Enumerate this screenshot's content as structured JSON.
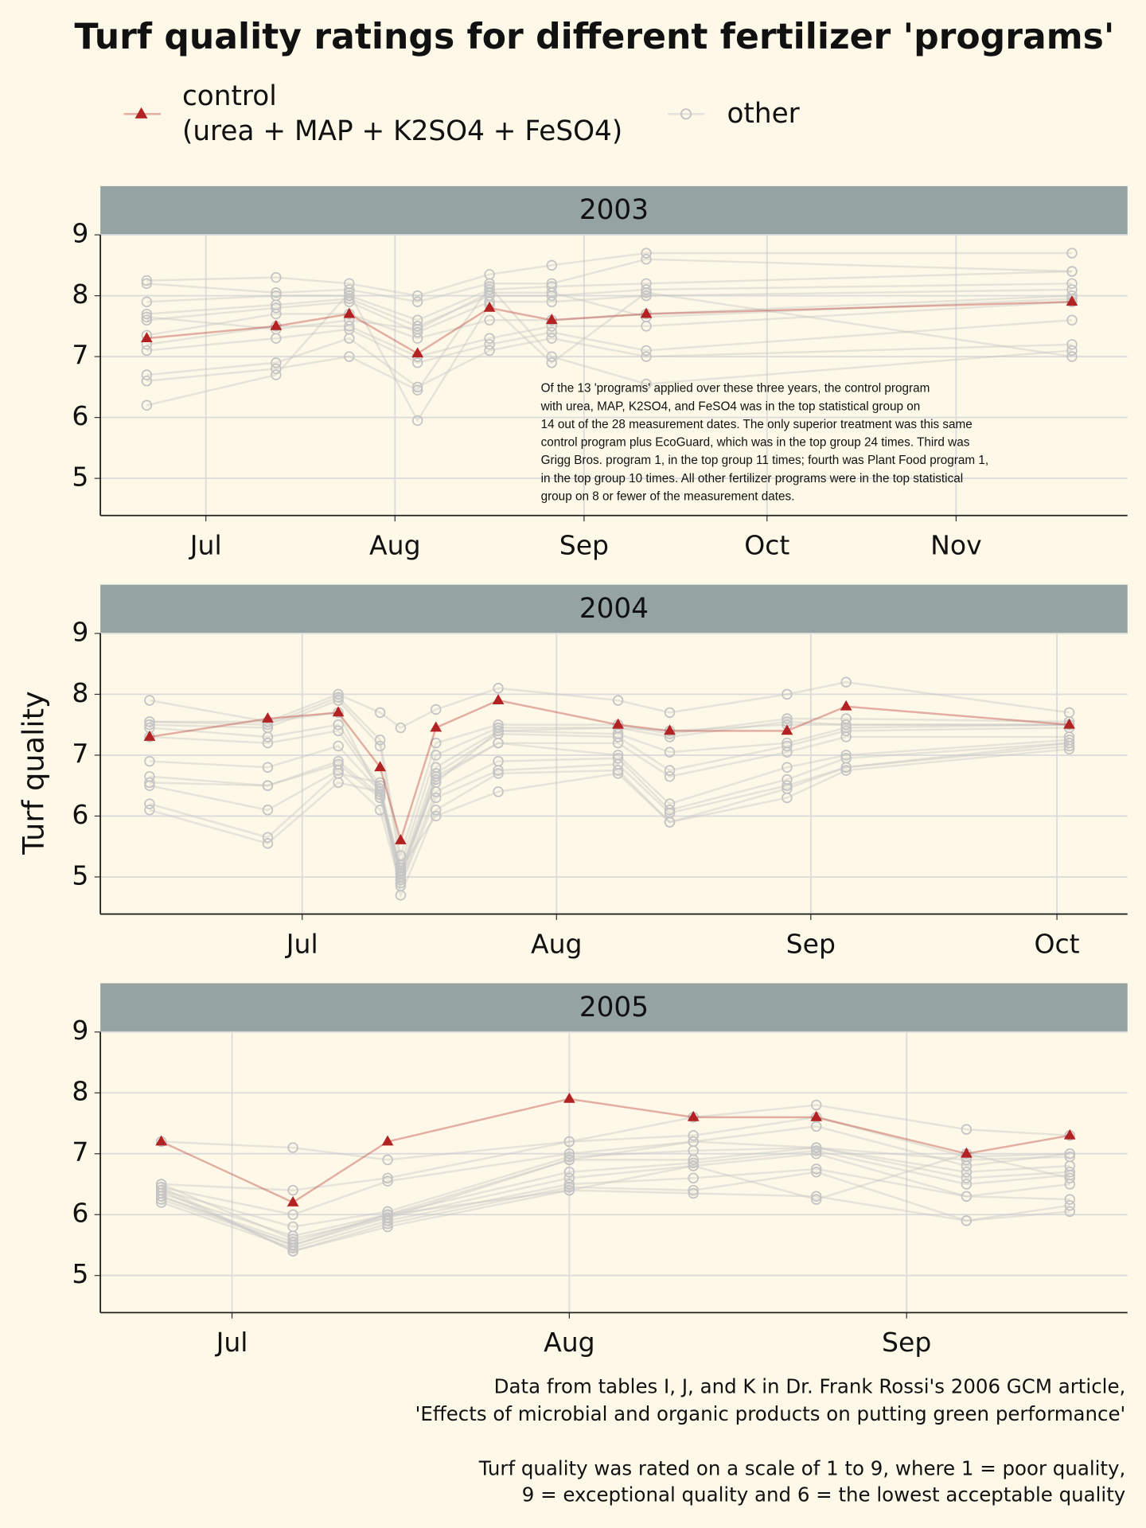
{
  "title": "Turf quality ratings for different fertilizer 'programs'",
  "legend": {
    "control": {
      "name": [
        "control",
        "(urea + MAP + K2SO4 + FeSO4)"
      ],
      "color": "#b22222"
    },
    "other": {
      "name": "other",
      "color": "#c4c4c4"
    }
  },
  "y_label": "Turf quality",
  "caption": [
    [
      "Data from tables I, J, and K in Dr. Frank Rossi's 2006 GCM article,",
      "'Effects of microbial and organic products on putting green performance'"
    ],
    [
      "Turf quality was rated on a scale of 1 to 9, where 1 = poor quality,",
      "9 = exceptional quality and 6 = the lowest acceptable quality"
    ]
  ],
  "chart_data": [
    {
      "type": "line",
      "title": "2003",
      "annotation": [
        "Of the 13 'programs' applied over these three years, the control program",
        "with urea, MAP, K2SO4, and FeSO4 was in the top statistical group on",
        "14 out of the 28 measurement dates. The only superior treatment was this same",
        "control program plus EcoGuard, which was in the top group 24 times. Third was",
        "Grigg Bros. program 1, in the top group 11 times; fourth was Plant Food program 1,",
        "in the top group 10 times. All other fertilizer programs were in the top statistical",
        "group on 8 or fewer of the measurement dates."
      ],
      "x": [
        172.3,
        193.5,
        205.5,
        216.7,
        228.5,
        238.7,
        254.2,
        324
      ],
      "xlim": [
        164.7,
        333.1
      ],
      "xticks": [
        {
          "value": 182,
          "label": "Jul"
        },
        {
          "value": 213,
          "label": "Aug"
        },
        {
          "value": 244,
          "label": "Sep"
        },
        {
          "value": 274,
          "label": "Oct"
        },
        {
          "value": 305,
          "label": "Nov"
        }
      ],
      "ylim": [
        4.39,
        9
      ],
      "yticks": [
        5,
        6,
        7,
        8,
        9
      ],
      "grid": true,
      "control": [
        7.3,
        7.5,
        7.7,
        7.05,
        7.8,
        7.6,
        7.7,
        7.9
      ],
      "other": [
        [
          8.25,
          8.3,
          8.2,
          8.0,
          8.35,
          8.5,
          8.7,
          8.7
        ],
        [
          8.2,
          8.05,
          8.1,
          7.9,
          8.2,
          8.2,
          8.6,
          8.4
        ],
        [
          7.9,
          8.0,
          8.0,
          7.6,
          8.1,
          8.15,
          8.2,
          8.4
        ],
        [
          7.7,
          7.85,
          7.95,
          7.5,
          8.0,
          8.0,
          8.1,
          8.2
        ],
        [
          7.6,
          7.8,
          7.9,
          7.4,
          7.9,
          7.9,
          8.0,
          8.1
        ],
        [
          7.35,
          7.7,
          7.7,
          7.3,
          7.6,
          7.6,
          7.7,
          8.0
        ],
        [
          7.2,
          7.5,
          7.5,
          7.0,
          7.3,
          7.5,
          7.5,
          7.9
        ],
        [
          7.1,
          7.3,
          7.45,
          6.9,
          7.2,
          7.4,
          7.1,
          7.6
        ],
        [
          6.7,
          6.9,
          7.3,
          6.5,
          7.1,
          7.3,
          7.0,
          7.2
        ],
        [
          6.6,
          6.8,
          7.0,
          6.45,
          8.15,
          7.0,
          6.55,
          7.1
        ],
        [
          6.2,
          6.7,
          8.05,
          5.95,
          7.85,
          6.9,
          8.05,
          7.0
        ],
        [
          7.65,
          7.45,
          7.6,
          7.45,
          8.05,
          8.05,
          7.65,
          7.95
        ]
      ]
    },
    {
      "type": "line",
      "title": "2004",
      "x": [
        163.4,
        177.8,
        186.4,
        191.5,
        194,
        198.3,
        205.9,
        220.5,
        226.8,
        241.1,
        248.3,
        275.5
      ],
      "xlim": [
        157.4,
        282.6
      ],
      "xticks": [
        {
          "value": 182,
          "label": "Jul"
        },
        {
          "value": 213,
          "label": "Aug"
        },
        {
          "value": 244,
          "label": "Sep"
        },
        {
          "value": 274,
          "label": "Oct"
        }
      ],
      "ylim": [
        4.39,
        9
      ],
      "yticks": [
        5,
        6,
        7,
        8,
        9
      ],
      "grid": true,
      "control": [
        7.3,
        7.6,
        7.7,
        6.8,
        5.6,
        7.45,
        7.9,
        7.5,
        7.4,
        7.4,
        7.8,
        7.5
      ],
      "other": [
        [
          7.9,
          7.55,
          8.0,
          7.7,
          7.45,
          7.75,
          8.1,
          7.9,
          7.7,
          8.0,
          8.2,
          7.7
        ],
        [
          7.55,
          7.5,
          7.95,
          7.25,
          5.35,
          7.2,
          7.5,
          7.5,
          7.35,
          7.6,
          7.6,
          7.55
        ],
        [
          7.5,
          7.45,
          7.9,
          7.15,
          5.2,
          7.0,
          7.45,
          7.45,
          7.3,
          7.55,
          7.5,
          7.5
        ],
        [
          7.45,
          7.3,
          7.5,
          6.5,
          5.1,
          6.8,
          7.4,
          7.35,
          7.05,
          7.2,
          7.45,
          7.5
        ],
        [
          7.3,
          7.2,
          7.4,
          6.45,
          5.05,
          6.7,
          7.35,
          7.3,
          6.75,
          7.15,
          7.4,
          7.45
        ],
        [
          6.9,
          6.8,
          7.15,
          6.4,
          5.0,
          6.65,
          7.2,
          7.2,
          6.65,
          7.05,
          7.3,
          7.3
        ],
        [
          6.65,
          6.5,
          6.9,
          6.35,
          4.95,
          6.6,
          7.2,
          7.0,
          6.2,
          6.8,
          7.0,
          7.25
        ],
        [
          6.55,
          6.5,
          6.85,
          6.3,
          4.9,
          6.4,
          6.9,
          6.95,
          6.1,
          6.6,
          6.95,
          7.2
        ],
        [
          6.5,
          6.1,
          6.75,
          6.1,
          4.85,
          6.3,
          6.75,
          6.85,
          6.05,
          6.5,
          6.8,
          7.2
        ],
        [
          6.2,
          5.65,
          6.7,
          6.55,
          4.7,
          6.1,
          6.7,
          6.75,
          5.9,
          6.45,
          6.8,
          7.15
        ],
        [
          6.1,
          5.55,
          6.55,
          6.4,
          5.15,
          6.0,
          6.4,
          6.7,
          5.9,
          6.3,
          6.75,
          7.1
        ],
        [
          7.55,
          7.55,
          7.7,
          6.35,
          5.1,
          6.55,
          7.4,
          7.45,
          7.4,
          7.5,
          7.5,
          7.5
        ]
      ]
    },
    {
      "type": "line",
      "title": "2005",
      "x": [
        175.5,
        187.6,
        196.3,
        213,
        224.4,
        235.7,
        249.5,
        259
      ],
      "xlim": [
        169.9,
        264.3
      ],
      "xticks": [
        {
          "value": 182,
          "label": "Jul"
        },
        {
          "value": 213,
          "label": "Aug"
        },
        {
          "value": 244,
          "label": "Sep"
        }
      ],
      "ylim": [
        4.39,
        9
      ],
      "yticks": [
        5,
        6,
        7,
        8,
        9
      ],
      "grid": true,
      "control": [
        7.2,
        6.2,
        7.2,
        7.9,
        7.6,
        7.6,
        7.0,
        7.3
      ],
      "other": [
        [
          7.2,
          7.1,
          6.9,
          7.2,
          7.6,
          7.8,
          7.4,
          7.3
        ],
        [
          6.5,
          6.4,
          6.6,
          7.2,
          7.3,
          7.6,
          6.95,
          7.0
        ],
        [
          6.45,
          6.0,
          6.55,
          7.0,
          7.2,
          7.45,
          6.8,
          7.0
        ],
        [
          6.4,
          5.8,
          6.05,
          6.95,
          7.05,
          7.1,
          6.7,
          6.8
        ],
        [
          6.35,
          5.65,
          6.0,
          6.9,
          6.9,
          7.1,
          6.6,
          6.7
        ],
        [
          6.3,
          5.55,
          6.0,
          6.7,
          6.85,
          7.05,
          6.5,
          6.65
        ],
        [
          6.25,
          5.5,
          5.95,
          6.6,
          6.8,
          7.0,
          6.3,
          6.5
        ],
        [
          6.2,
          5.45,
          5.9,
          6.5,
          6.6,
          6.75,
          6.3,
          6.25
        ],
        [
          6.45,
          5.4,
          5.85,
          6.45,
          6.4,
          6.7,
          5.9,
          6.15
        ],
        [
          6.4,
          5.4,
          5.8,
          6.4,
          6.35,
          6.3,
          5.9,
          6.05
        ],
        [
          6.3,
          5.5,
          6.0,
          6.4,
          6.8,
          6.25,
          7.0,
          6.6
        ],
        [
          6.5,
          5.6,
          5.95,
          6.9,
          7.2,
          7.1,
          6.9,
          6.95
        ]
      ]
    }
  ]
}
